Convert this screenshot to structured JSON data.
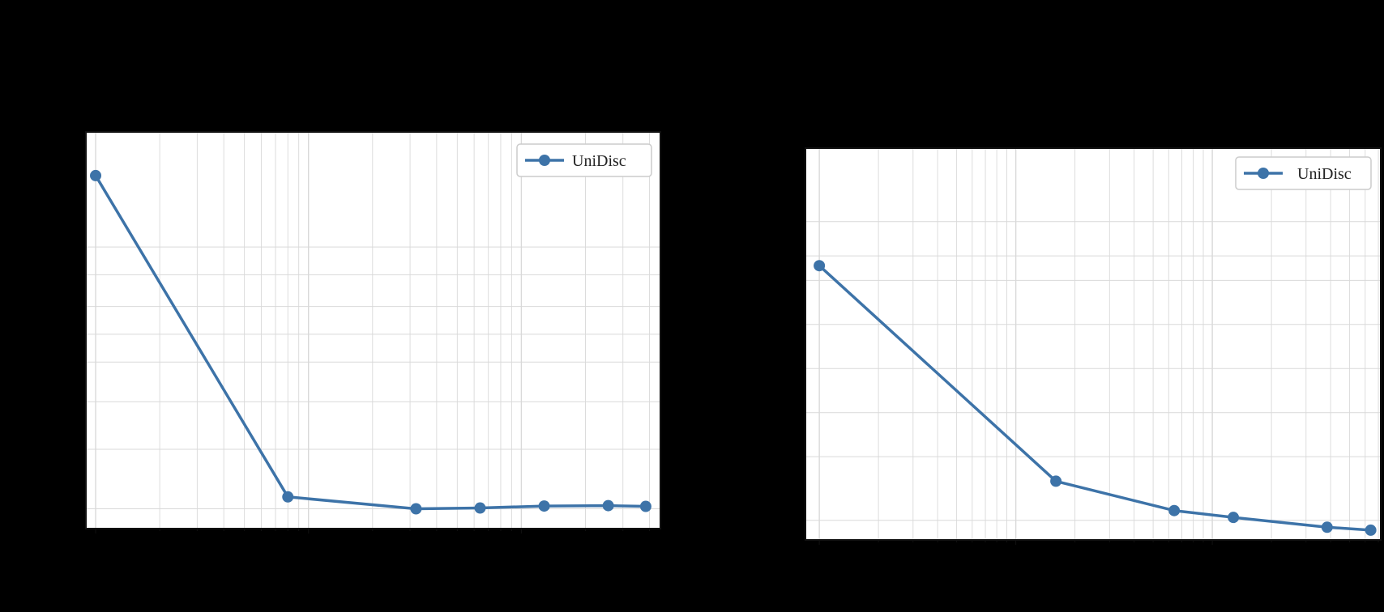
{
  "colors": {
    "background": "#000000",
    "plot_background": "#ffffff",
    "series": "#3d73a8",
    "grid": "#d9d9d9",
    "frame": "#111111"
  },
  "chart_data": [
    {
      "type": "line",
      "title": "",
      "xlabel": "",
      "ylabel": "",
      "x_scale": "log",
      "grid": true,
      "legend_position": "top-right",
      "series": [
        {
          "name": "UniDisc",
          "x": [
            1,
            8,
            32,
            64,
            128,
            256,
            384
          ],
          "y": [
            0.89,
            0.08,
            0.05,
            0.052,
            0.057,
            0.058,
            0.056
          ]
        }
      ]
    },
    {
      "type": "line",
      "title": "",
      "xlabel": "",
      "ylabel": "",
      "x_scale": "log",
      "grid": true,
      "legend_position": "top-right",
      "series": [
        {
          "name": "UniDisc",
          "x": [
            1,
            16,
            64,
            128,
            384,
            640
          ],
          "y": [
            0.56,
            0.12,
            0.06,
            0.046,
            0.026,
            0.02
          ]
        }
      ]
    }
  ]
}
